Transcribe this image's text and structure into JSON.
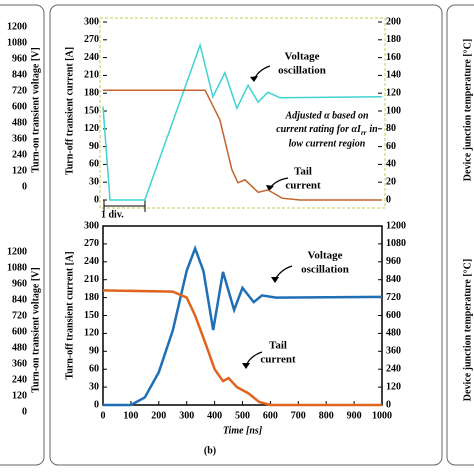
{
  "chart_data": [
    {
      "type": "line",
      "ylabel": "Turn-off transient current [A]",
      "xlim": [
        0,
        1000
      ],
      "ylim": [
        0,
        300
      ],
      "yticks": [
        0,
        30,
        60,
        90,
        120,
        150,
        180,
        210,
        240,
        270,
        300
      ],
      "y2lim": [
        0,
        200
      ],
      "y2ticks": [
        0,
        20,
        40,
        60,
        80,
        100,
        120,
        140,
        160,
        180,
        200
      ],
      "series": [
        {
          "color": "#3fd3d3",
          "axis": "y2",
          "x": [
            0,
            25,
            150,
            348,
            394,
            437,
            480,
            520,
            556,
            591,
            634,
            1000
          ],
          "values": [
            105,
            0,
            0,
            174,
            116,
            143,
            103,
            129,
            110,
            121,
            115,
            116
          ]
        },
        {
          "color": "#c4632c",
          "axis": "y",
          "x": [
            0,
            366,
            419,
            462,
            484,
            509,
            556,
            591,
            642,
            706,
            1000
          ],
          "values": [
            185,
            185,
            135,
            51,
            29,
            34,
            13,
            17,
            3,
            0,
            0
          ]
        }
      ],
      "annotations": {
        "voltage": [
          "Voltage",
          "oscillation"
        ],
        "tail": [
          "Tail",
          "current"
        ],
        "note": [
          "Adjusted α based on",
          "current rating for αI",
          "rr",
          "in",
          "low current region"
        ],
        "div": "1 div."
      }
    },
    {
      "type": "line",
      "ylabel": "Turn-off transient current [A]",
      "xlabel": "Time [ns]",
      "xlim": [
        0,
        1000
      ],
      "xticks": [
        0,
        100,
        200,
        300,
        400,
        500,
        600,
        700,
        800,
        900,
        1000
      ],
      "ylim": [
        0,
        300
      ],
      "yticks": [
        0,
        30,
        60,
        90,
        120,
        150,
        180,
        210,
        240,
        270,
        300
      ],
      "y2lim": [
        0,
        1200
      ],
      "y2ticks": [
        0,
        120,
        240,
        360,
        480,
        600,
        720,
        840,
        960,
        1080,
        1200
      ],
      "series": [
        {
          "color": "#1f6fb5",
          "axis": "y2",
          "x": [
            0,
            100,
            150,
            200,
            250,
            300,
            330,
            360,
            395,
            430,
            470,
            500,
            540,
            570,
            620,
            1000
          ],
          "values": [
            0,
            0,
            50,
            220,
            500,
            900,
            1050,
            900,
            503,
            892,
            637,
            785,
            690,
            735,
            720,
            725
          ]
        },
        {
          "color": "#e0641e",
          "axis": "y",
          "x": [
            0,
            250,
            300,
            330,
            370,
            400,
            430,
            450,
            480,
            500,
            520,
            560,
            600,
            1000
          ],
          "values": [
            192,
            190,
            180,
            150,
            100,
            60,
            40,
            45,
            30,
            25,
            20,
            5,
            0,
            0
          ]
        }
      ],
      "annotations": {
        "voltage": [
          "Voltage",
          "oscillation"
        ],
        "tail": [
          "Tail",
          "current"
        ]
      }
    }
  ],
  "figure_label": "(b)",
  "left_panel": {
    "ylabel": "Turn-on transient voltage [V]",
    "yticks": [
      1200,
      1080,
      960,
      840,
      720,
      600,
      480,
      360,
      240,
      120,
      0
    ]
  },
  "right_panel": {
    "ylabel": "Device junction temperature [°C]"
  }
}
